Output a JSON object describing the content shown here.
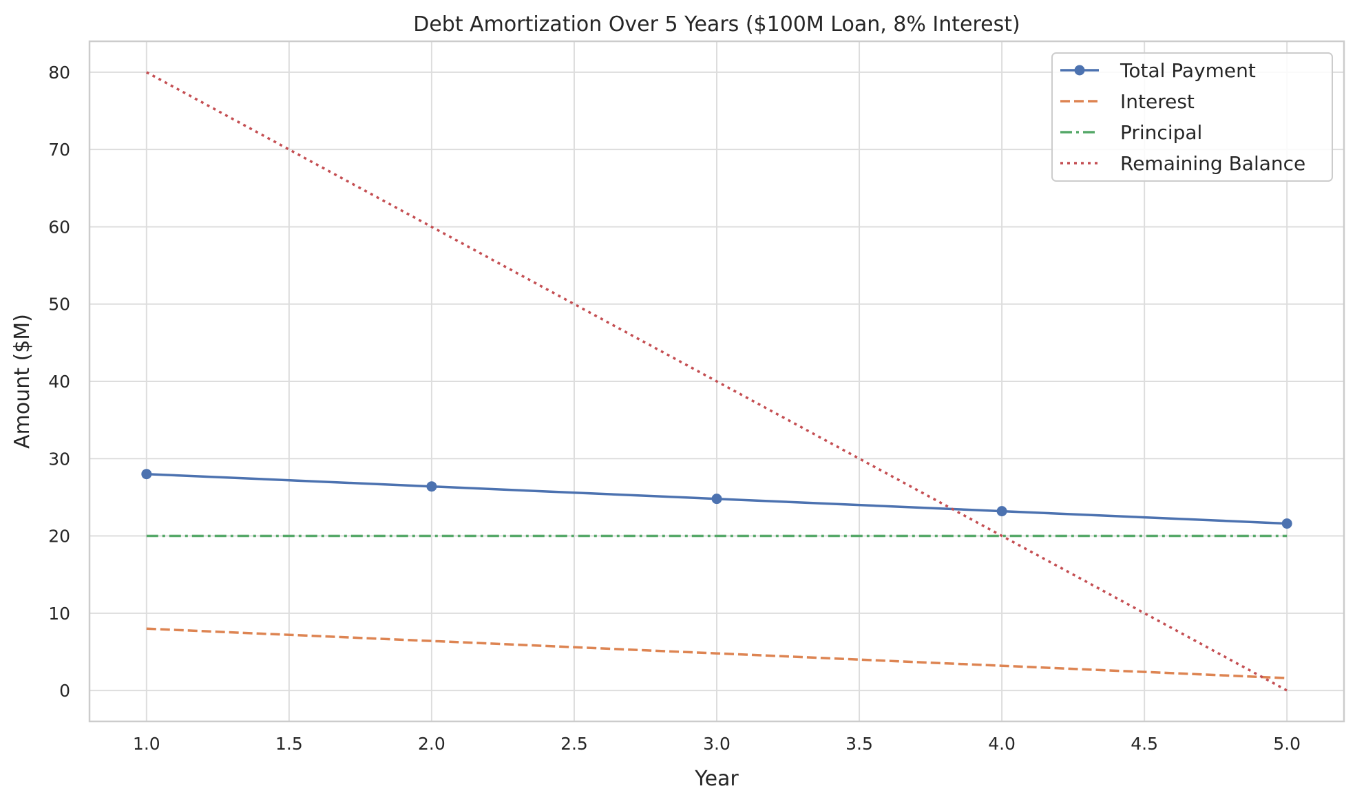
{
  "chart_data": {
    "type": "line",
    "title": "Debt Amortization Over 5 Years ($100M Loan, 8% Interest)",
    "xlabel": "Year",
    "ylabel": "Amount ($M)",
    "xlim": [
      0.8,
      5.2
    ],
    "ylim": [
      -4,
      84
    ],
    "x_ticks": [
      1.0,
      1.5,
      2.0,
      2.5,
      3.0,
      3.5,
      4.0,
      4.5,
      5.0
    ],
    "x_tick_labels": [
      "1.0",
      "1.5",
      "2.0",
      "2.5",
      "3.0",
      "3.5",
      "4.0",
      "4.5",
      "5.0"
    ],
    "y_ticks": [
      0,
      10,
      20,
      30,
      40,
      50,
      60,
      70,
      80
    ],
    "y_tick_labels": [
      "0",
      "10",
      "20",
      "30",
      "40",
      "50",
      "60",
      "70",
      "80"
    ],
    "grid": true,
    "legend_position": "top-right",
    "x": [
      1,
      2,
      3,
      4,
      5
    ],
    "series": [
      {
        "name": "Total Payment",
        "values": [
          28.0,
          26.4,
          24.8,
          23.2,
          21.6
        ],
        "color": "#4c72b0",
        "style": "solid",
        "marker": "circle"
      },
      {
        "name": "Interest",
        "values": [
          8.0,
          6.4,
          4.8,
          3.2,
          1.6
        ],
        "color": "#dd8452",
        "style": "dashed",
        "marker": "none"
      },
      {
        "name": "Principal",
        "values": [
          20,
          20,
          20,
          20,
          20
        ],
        "color": "#55a868",
        "style": "dashdot",
        "marker": "none"
      },
      {
        "name": "Remaining Balance",
        "values": [
          80,
          60,
          40,
          20,
          0
        ],
        "color": "#c44e52",
        "style": "dotted",
        "marker": "none"
      }
    ]
  }
}
